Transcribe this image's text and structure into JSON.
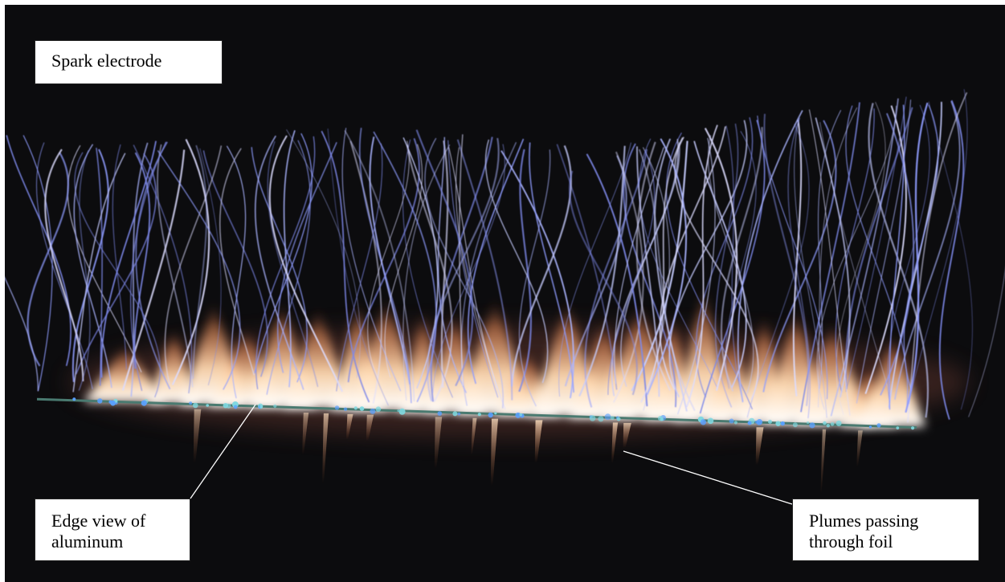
{
  "labels": {
    "spark_electrode": "Spark electrode",
    "edge_view_line1": "Edge view of",
    "edge_view_line2": "aluminum",
    "plumes_line1": "Plumes passing",
    "plumes_line2": "through foil"
  },
  "colors": {
    "background": "#0c0c0e",
    "spark_blue": "#b8c4ff",
    "flame_orange": "#ffb070",
    "flame_core": "#fff0e0",
    "foil_cyan": "#7fd8e0"
  }
}
